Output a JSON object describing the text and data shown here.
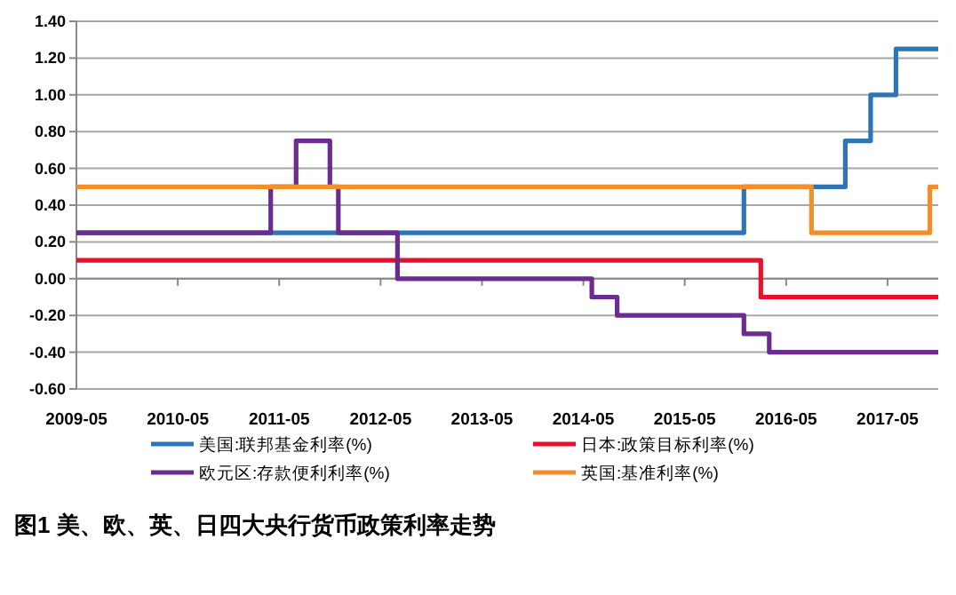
{
  "chart_data": {
    "type": "step",
    "title": "图1  美、欧、英、日四大央行货币政策利率走势",
    "xlim": [
      "2009-05",
      "2017-11"
    ],
    "xticks": [
      "2009-05",
      "2010-05",
      "2011-05",
      "2012-05",
      "2013-05",
      "2014-05",
      "2015-05",
      "2016-05",
      "2017-05"
    ],
    "ylim": [
      -0.6,
      1.4
    ],
    "yticks": [
      {
        "value": -0.6,
        "label": "-0.60"
      },
      {
        "value": -0.4,
        "label": "-0.40"
      },
      {
        "value": -0.2,
        "label": "-0.20"
      },
      {
        "value": 0,
        "label": "0.00"
      },
      {
        "value": 0.2,
        "label": "0.20"
      },
      {
        "value": 0.4,
        "label": "0.40"
      },
      {
        "value": 0.6,
        "label": "0.60"
      },
      {
        "value": 0.8,
        "label": "0.80"
      },
      {
        "value": 1.0,
        "label": "1.00"
      },
      {
        "value": 1.2,
        "label": "1.20"
      },
      {
        "value": 1.4,
        "label": "1.40"
      }
    ],
    "grid": "y",
    "legend": "bottom",
    "marker": "none",
    "line_style": "solid",
    "series": [
      {
        "name": "美国:联邦基金利率(%)",
        "color": "#2e75b6",
        "x": [
          "2009-05",
          "2015-12",
          "2016-12",
          "2017-03",
          "2017-06",
          "2017-11"
        ],
        "values": [
          0.25,
          0.5,
          0.75,
          1.0,
          1.25,
          1.25
        ]
      },
      {
        "name": "日本:政策目标利率(%)",
        "color": "#e8112d",
        "x": [
          "2009-05",
          "2016-02",
          "2017-11"
        ],
        "values": [
          0.1,
          -0.1,
          -0.1
        ]
      },
      {
        "name": "欧元区:存款便利利率(%)",
        "color": "#6a2c8e",
        "x": [
          "2009-05",
          "2011-04",
          "2011-07",
          "2011-11",
          "2011-12",
          "2012-07",
          "2014-06",
          "2014-09",
          "2015-12",
          "2016-03",
          "2017-11"
        ],
        "values": [
          0.25,
          0.5,
          0.75,
          0.5,
          0.25,
          0,
          -0.1,
          -0.2,
          -0.3,
          -0.4,
          -0.4
        ]
      },
      {
        "name": "英国:基准利率(%)",
        "color": "#f28e2b",
        "x": [
          "2009-05",
          "2016-08",
          "2017-10",
          "2017-11"
        ],
        "values": [
          0.5,
          0.25,
          0.5,
          0.5
        ]
      }
    ]
  }
}
